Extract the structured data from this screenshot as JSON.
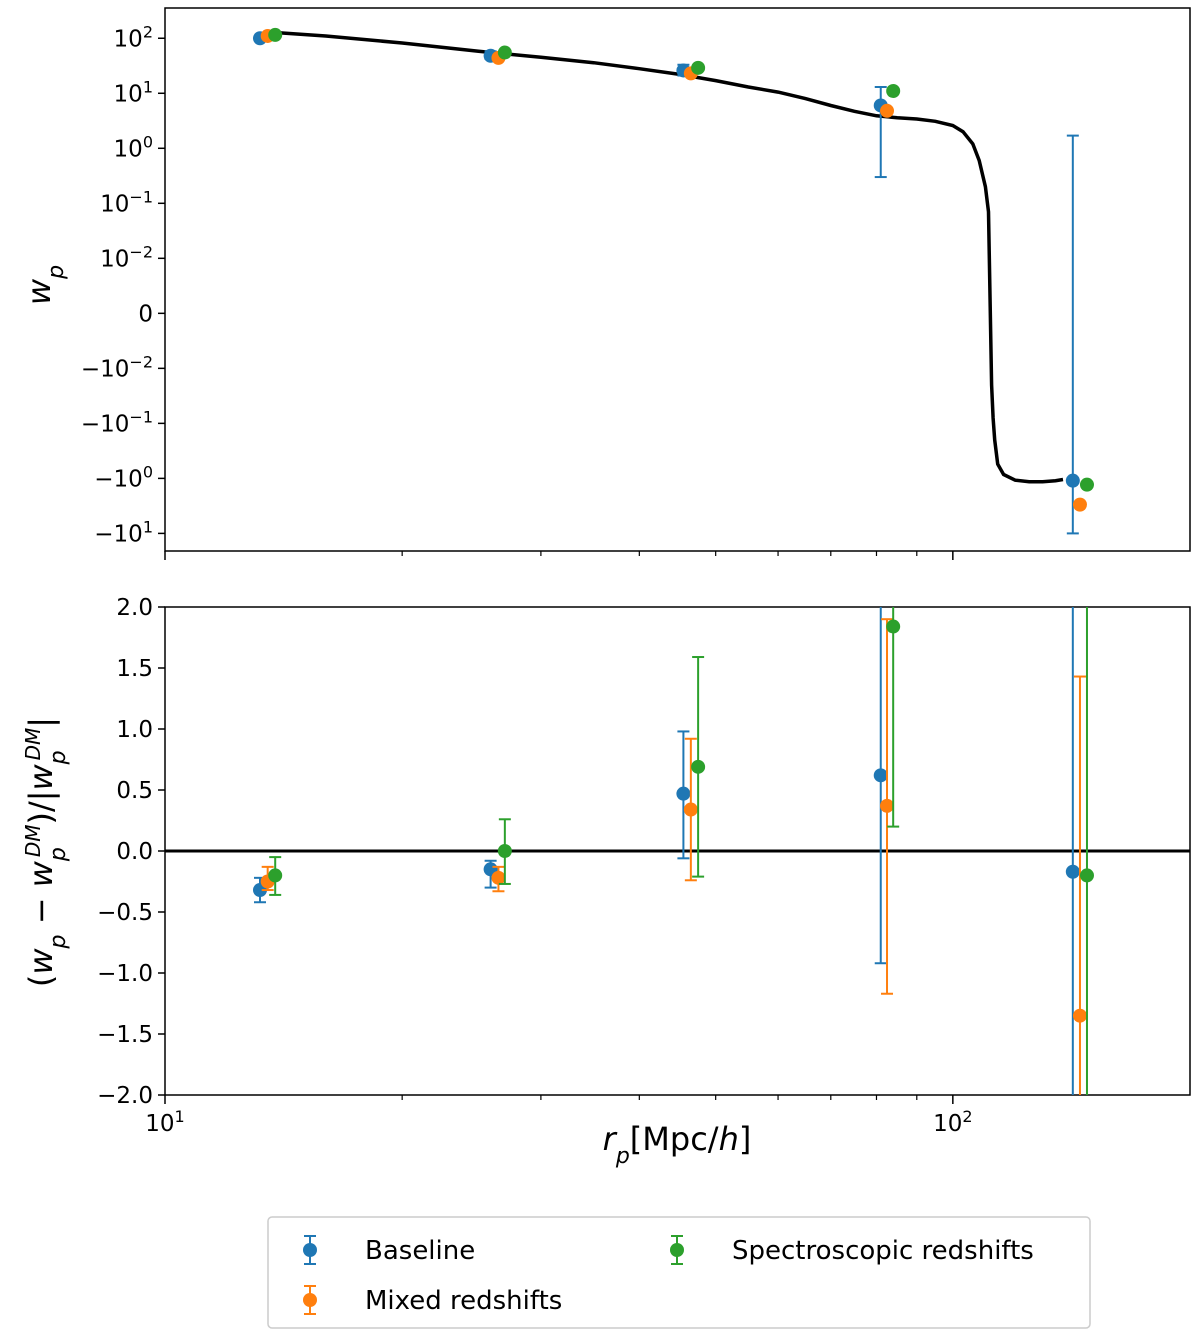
{
  "chart_data": [
    {
      "type": "scatter",
      "panel": "top",
      "yscale": "symlog",
      "ylabel": "w_p",
      "y_tick_labels": [
        {
          "base": "10",
          "exp": "2",
          "value": 100
        },
        {
          "base": "10",
          "exp": "1",
          "value": 10
        },
        {
          "base": "10",
          "exp": "0",
          "value": 1
        },
        {
          "base": "10",
          "exp": "−1",
          "value": 0.1
        },
        {
          "base": "10",
          "exp": "−2",
          "value": 0.01
        },
        {
          "base": "0",
          "exp": "",
          "value": 0
        },
        {
          "base": "−10",
          "exp": "−2",
          "value": -0.01
        },
        {
          "base": "−10",
          "exp": "−1",
          "value": -0.1
        },
        {
          "base": "−10",
          "exp": "0",
          "value": -1
        },
        {
          "base": "−10",
          "exp": "1",
          "value": -10
        }
      ],
      "model_curve": {
        "color": "#000000",
        "x": [
          13.5,
          16,
          20,
          25,
          30,
          35,
          40,
          45,
          50,
          55,
          60,
          65,
          70,
          75,
          80,
          85,
          90,
          95,
          100,
          103,
          106,
          108,
          110,
          111,
          112,
          112.5,
          113,
          114,
          116,
          120,
          125,
          130,
          135,
          138
        ],
        "y": [
          130,
          110,
          82,
          58,
          45,
          36,
          28,
          22,
          17,
          13,
          10.5,
          8,
          6,
          4.7,
          3.9,
          3.6,
          3.4,
          3.1,
          2.6,
          2.0,
          1.2,
          0.6,
          0.2,
          0.07,
          -0.02,
          -0.08,
          -0.2,
          -0.55,
          -0.85,
          -1.08,
          -1.15,
          -1.15,
          -1.1,
          -1.05
        ]
      },
      "series": [
        {
          "name": "Baseline",
          "color": "#1f77b4",
          "x": [
            13.2,
            25.9,
            45.5,
            81.0,
            142.0
          ],
          "y": [
            100,
            48,
            26,
            6,
            -1.1
          ],
          "yerr_low": [
            92,
            42,
            21,
            0.3,
            -10
          ],
          "yerr_high": [
            110,
            58,
            33,
            13,
            1.7
          ]
        },
        {
          "name": "Mixed redshifts",
          "color": "#ff7f0e",
          "x": [
            13.5,
            26.5,
            46.5,
            82.5,
            145.0
          ],
          "y": [
            110,
            44,
            23,
            4.8,
            -3
          ]
        },
        {
          "name": "Spectroscopic redshifts",
          "color": "#2ca02c",
          "x": [
            13.8,
            27.0,
            47.5,
            84.0,
            148.0
          ],
          "y": [
            115,
            55,
            29,
            11,
            -1.3
          ]
        }
      ]
    },
    {
      "type": "scatter",
      "panel": "bottom",
      "xscale": "log",
      "xlim": [
        10,
        200
      ],
      "ylim": [
        -2.0,
        2.0
      ],
      "xlabel": "r_p[Mpc/h]",
      "ylabel": "(w_p − w_p^DM)/|w_p^DM|",
      "x_tick_labels": [
        {
          "base": "10",
          "exp": "1",
          "value": 10
        },
        {
          "base": "10",
          "exp": "2",
          "value": 100
        }
      ],
      "y_tick_labels": [
        "2.0",
        "1.5",
        "1.0",
        "0.5",
        "0.0",
        "−0.5",
        "−1.0",
        "−1.5",
        "−2.0"
      ],
      "hline": 0.0,
      "series": [
        {
          "name": "Baseline",
          "color": "#1f77b4",
          "x": [
            13.2,
            25.9,
            45.5,
            81.0,
            142.0
          ],
          "y": [
            -0.32,
            -0.15,
            0.47,
            0.62,
            -0.17
          ],
          "yerr_low": [
            -0.42,
            -0.3,
            -0.06,
            -0.92,
            -2.0
          ],
          "yerr_high": [
            -0.22,
            -0.08,
            0.98,
            2.0,
            2.0
          ]
        },
        {
          "name": "Mixed redshifts",
          "color": "#ff7f0e",
          "x": [
            13.5,
            26.5,
            46.5,
            82.5,
            145.0
          ],
          "y": [
            -0.25,
            -0.22,
            0.34,
            0.37,
            -1.35
          ],
          "yerr_low": [
            -0.32,
            -0.33,
            -0.24,
            -1.17,
            -2.0
          ],
          "yerr_high": [
            -0.13,
            -0.13,
            0.92,
            1.9,
            1.43
          ]
        },
        {
          "name": "Spectroscopic redshifts",
          "color": "#2ca02c",
          "x": [
            13.8,
            27.0,
            47.5,
            84.0,
            148.0
          ],
          "y": [
            -0.2,
            0.0,
            0.69,
            1.84,
            -0.2
          ],
          "yerr_low": [
            -0.36,
            -0.27,
            -0.21,
            0.2,
            -2.0
          ],
          "yerr_high": [
            -0.05,
            0.26,
            1.59,
            2.0,
            2.0
          ]
        }
      ]
    }
  ],
  "legend": {
    "placement": "bottom-center",
    "entries": [
      {
        "label": "Baseline",
        "color": "#1f77b4"
      },
      {
        "label": "Mixed redshifts",
        "color": "#ff7f0e"
      },
      {
        "label": "Spectroscopic redshifts",
        "color": "#2ca02c"
      }
    ]
  }
}
